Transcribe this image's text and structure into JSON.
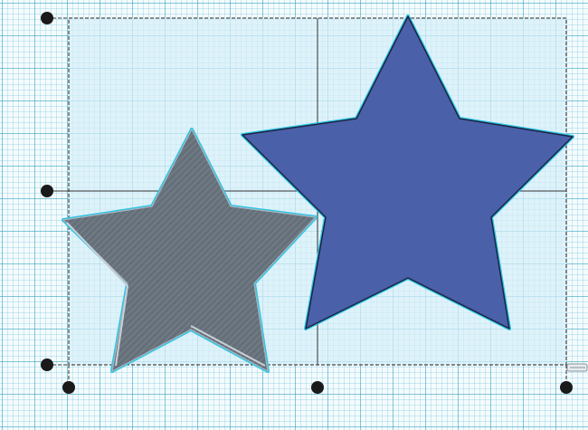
{
  "app": {
    "view": "3d-design-workplane"
  },
  "selection": {
    "box_fill": "#d6eef8",
    "box_stroke": "#222222"
  },
  "shapes": [
    {
      "name": "star-hole-shape",
      "kind": "hole",
      "fill": "#66707a",
      "outline": "#2ec4e6"
    },
    {
      "name": "star-solid-shape",
      "kind": "solid",
      "fill": "#4a60a8",
      "outline": "#2ec4e6"
    }
  ],
  "handles": {
    "color": "#1a1a1a",
    "icon": "corner-resize-handle-icon"
  }
}
